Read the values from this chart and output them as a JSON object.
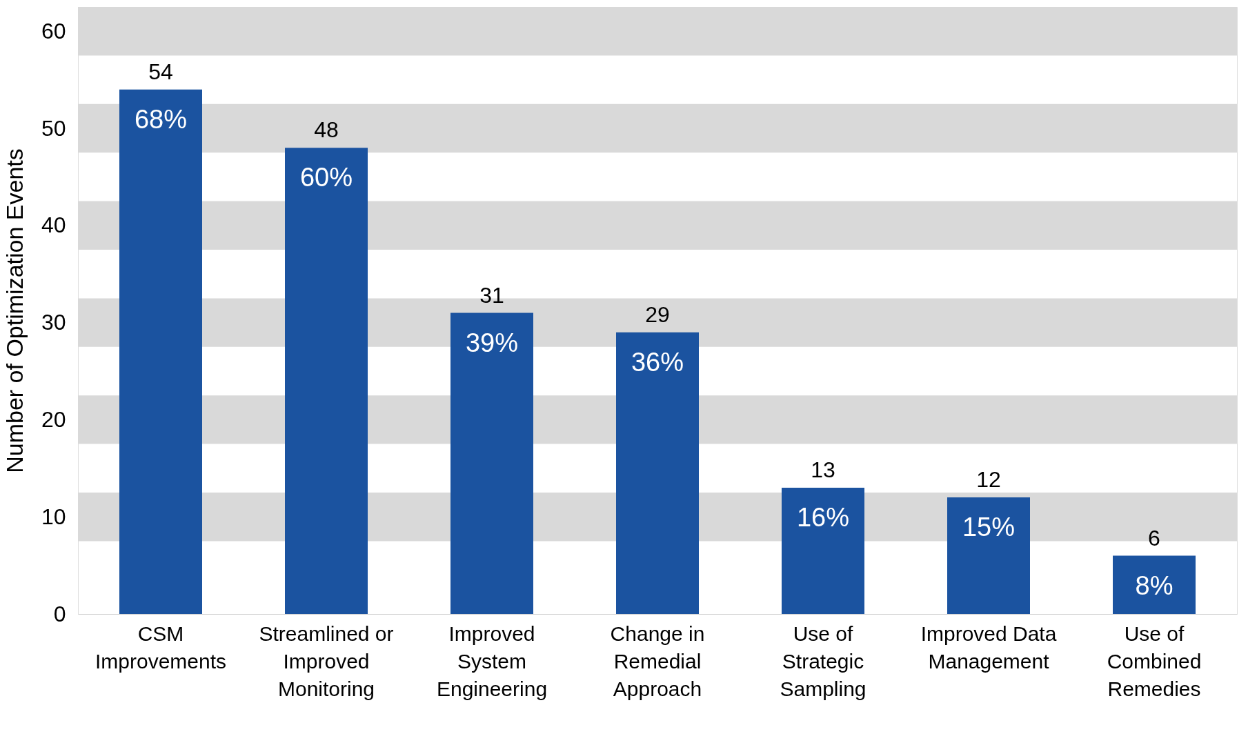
{
  "chart_data": {
    "type": "bar",
    "ylabel": "Number of Optimization Events",
    "categories": [
      "CSM Improvements",
      "Streamlined or Improved Monitoring",
      "Improved System Engineering",
      "Change in Remedial Approach",
      "Use of Strategic Sampling",
      "Improved Data Management",
      "Use of Combined Remedies"
    ],
    "values": [
      54,
      48,
      31,
      29,
      13,
      12,
      6
    ],
    "color": "#1b53a0",
    "data_labels": true,
    "annotations": [
      {
        "text": "68%",
        "x": "CSM Improvements",
        "y": 54
      },
      {
        "text": "60%",
        "x": "Streamlined or Improved Monitoring",
        "y": 48
      },
      {
        "text": "39%",
        "x": "Improved System Engineering",
        "y": 31
      },
      {
        "text": "36%",
        "x": "Change in Remedial Approach",
        "y": 29
      },
      {
        "text": "16%",
        "x": "Use of Strategic Sampling",
        "y": 13
      },
      {
        "text": "15%",
        "x": "Improved Data Management",
        "y": 12
      },
      {
        "text": "8%",
        "x": "Use of Combined Remedies",
        "y": 6
      }
    ],
    "bands": [
      {
        "axis": "y",
        "from": 7.5,
        "to": 12.5,
        "color": "#d9d9d9"
      },
      {
        "axis": "y",
        "from": 17.5,
        "to": 22.5,
        "color": "#d9d9d9"
      },
      {
        "axis": "y",
        "from": 27.5,
        "to": 32.5,
        "color": "#d9d9d9"
      },
      {
        "axis": "y",
        "from": 37.5,
        "to": 42.5,
        "color": "#d9d9d9"
      },
      {
        "axis": "y",
        "from": 47.5,
        "to": 52.5,
        "color": "#d9d9d9"
      },
      {
        "axis": "y",
        "from": 57.5,
        "to": 62.5,
        "color": "#d9d9d9"
      }
    ],
    "ylim": [
      0,
      62.5
    ],
    "yticks": [
      0,
      10,
      20,
      30,
      40,
      50,
      60
    ],
    "grid": false
  }
}
